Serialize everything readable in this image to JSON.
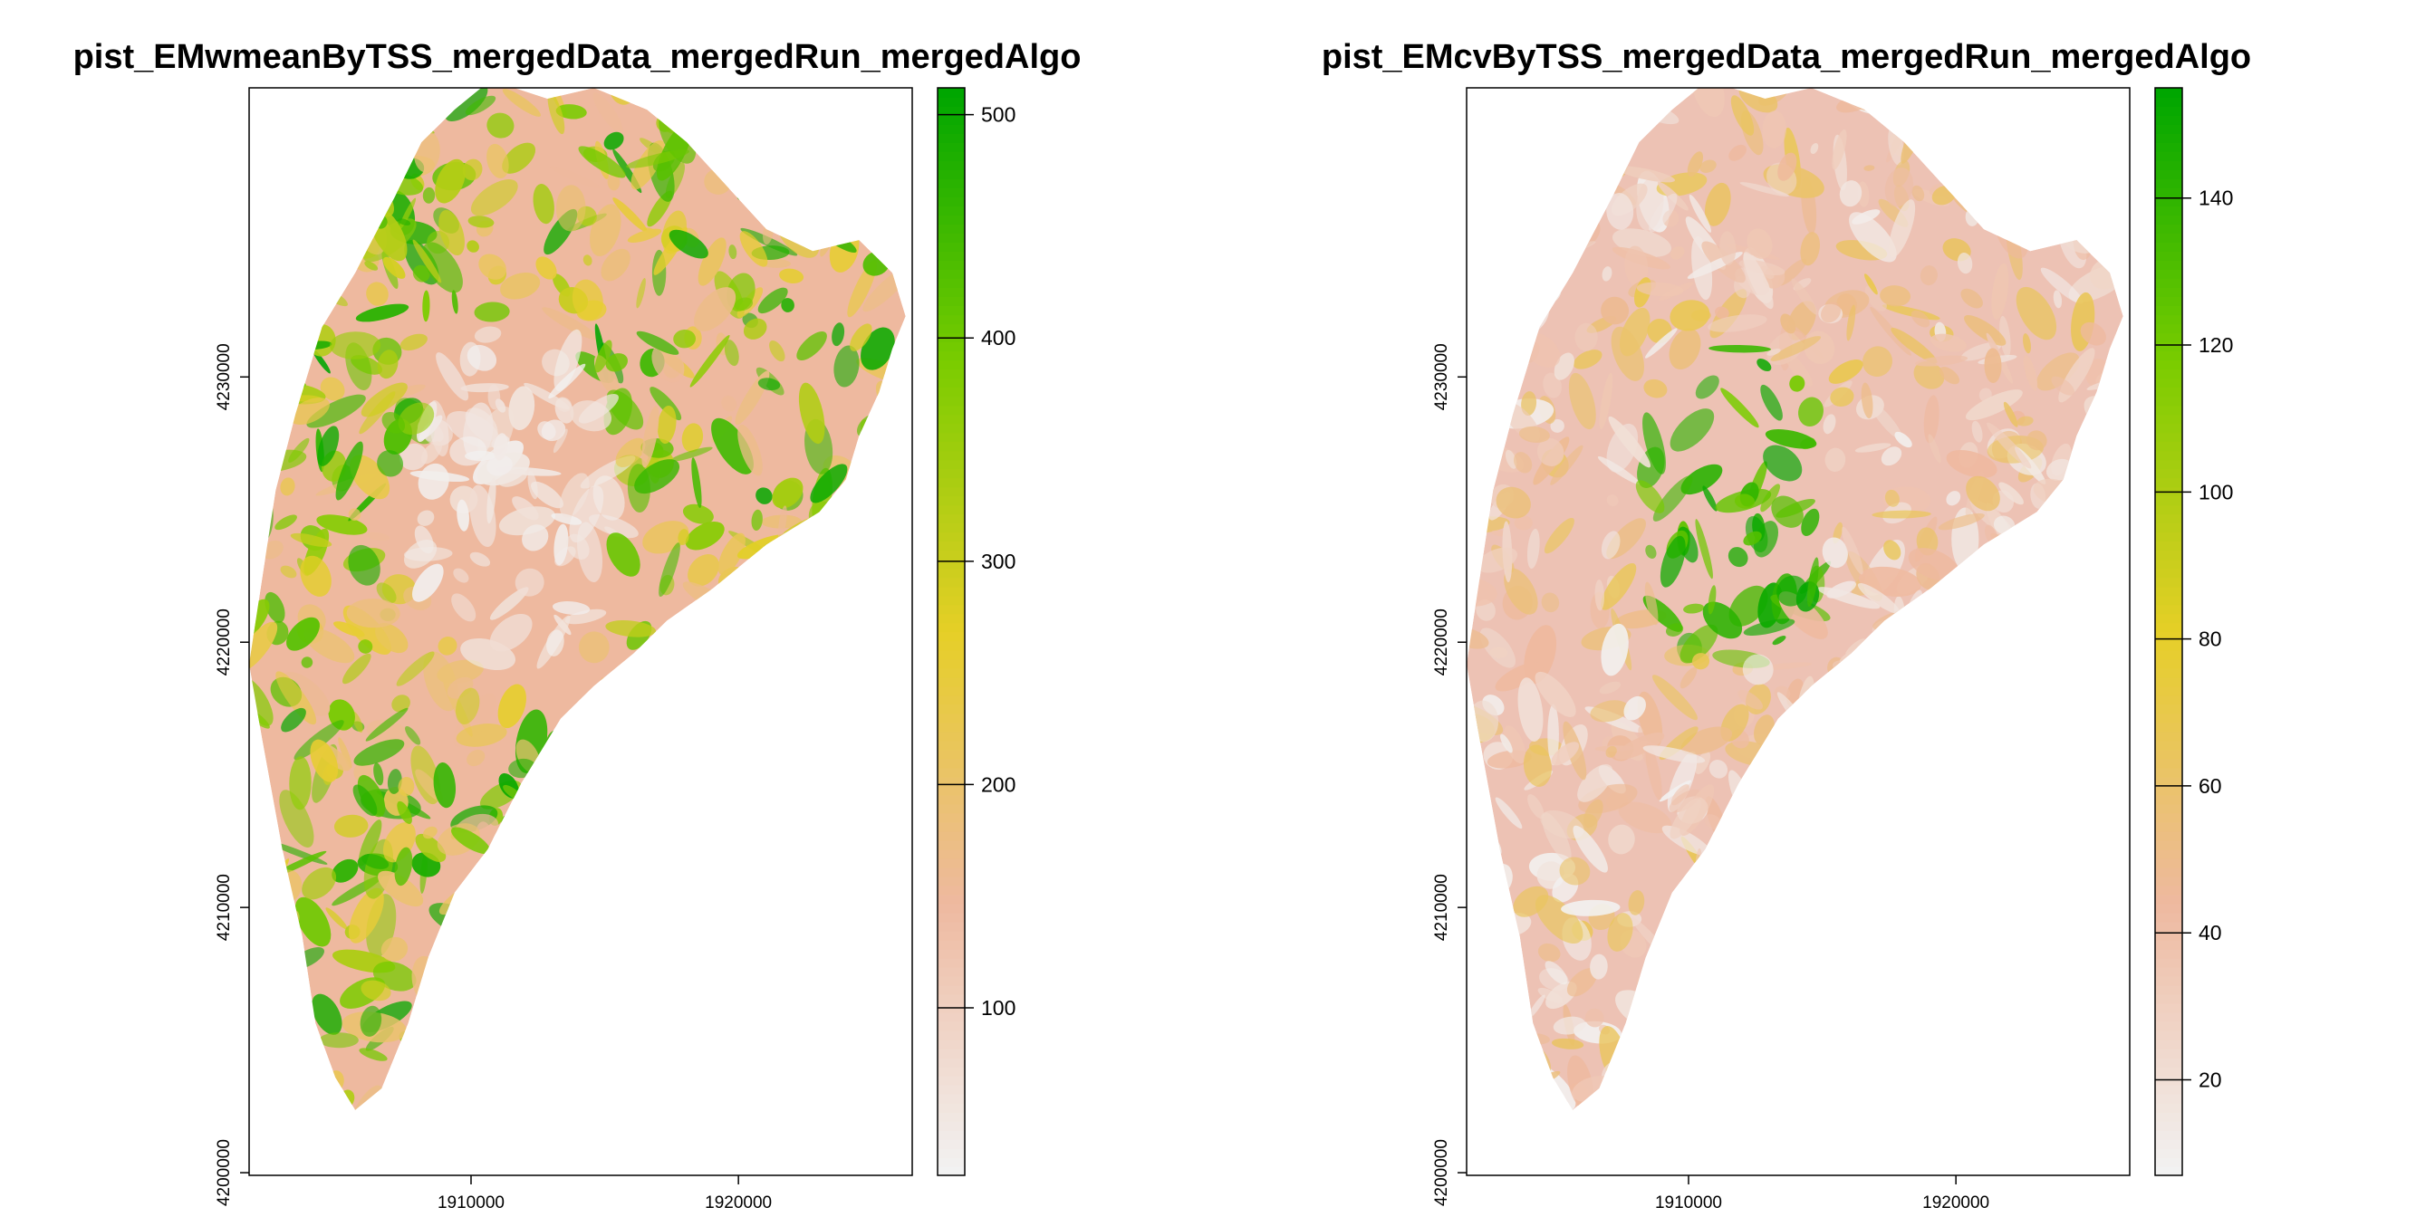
{
  "chart_data": [
    {
      "type": "heatmap",
      "title": "pist_EMwmeanByTSS_mergedData_mergedRun_mergedAlgo",
      "xlabel": "",
      "ylabel": "",
      "x_ticks": [
        1910000,
        1920000
      ],
      "x_tick_labels": [
        "1910000",
        "1920000"
      ],
      "y_ticks": [
        4200000,
        4210000,
        4220000,
        4230000
      ],
      "y_tick_labels": [
        "4200000",
        "4210000",
        "4220000",
        "4230000"
      ],
      "xlim": [
        1901700,
        1926500
      ],
      "ylim": [
        4199900,
        4240900
      ],
      "legend": {
        "position": "right",
        "min": 25,
        "max": 512,
        "ticks": [
          100,
          200,
          300,
          400,
          500
        ],
        "tick_labels": [
          "100",
          "200",
          "300",
          "400",
          "500"
        ]
      },
      "colors": [
        "#F2F2F2",
        "#EEB99F",
        "#E6CF27",
        "#7ACC00",
        "#00A600"
      ],
      "grid": false,
      "pattern": "mean"
    },
    {
      "type": "heatmap",
      "title": "pist_EMcvByTSS_mergedData_mergedRun_mergedAlgo",
      "xlabel": "",
      "ylabel": "",
      "x_ticks": [
        1910000,
        1920000
      ],
      "x_tick_labels": [
        "1910000",
        "1920000"
      ],
      "y_ticks": [
        4200000,
        4210000,
        4220000,
        4230000
      ],
      "y_tick_labels": [
        "4200000",
        "4210000",
        "4220000",
        "4230000"
      ],
      "xlim": [
        1901700,
        1926500
      ],
      "ylim": [
        4199900,
        4240900
      ],
      "legend": {
        "position": "right",
        "min": 7,
        "max": 155,
        "ticks": [
          20,
          40,
          60,
          80,
          100,
          120,
          140
        ],
        "tick_labels": [
          "20",
          "40",
          "60",
          "80",
          "100",
          "120",
          "140"
        ]
      },
      "colors": [
        "#F2F2F2",
        "#EEB99F",
        "#E6CF27",
        "#7ACC00",
        "#00A600"
      ],
      "grid": false,
      "pattern": "cv"
    }
  ]
}
